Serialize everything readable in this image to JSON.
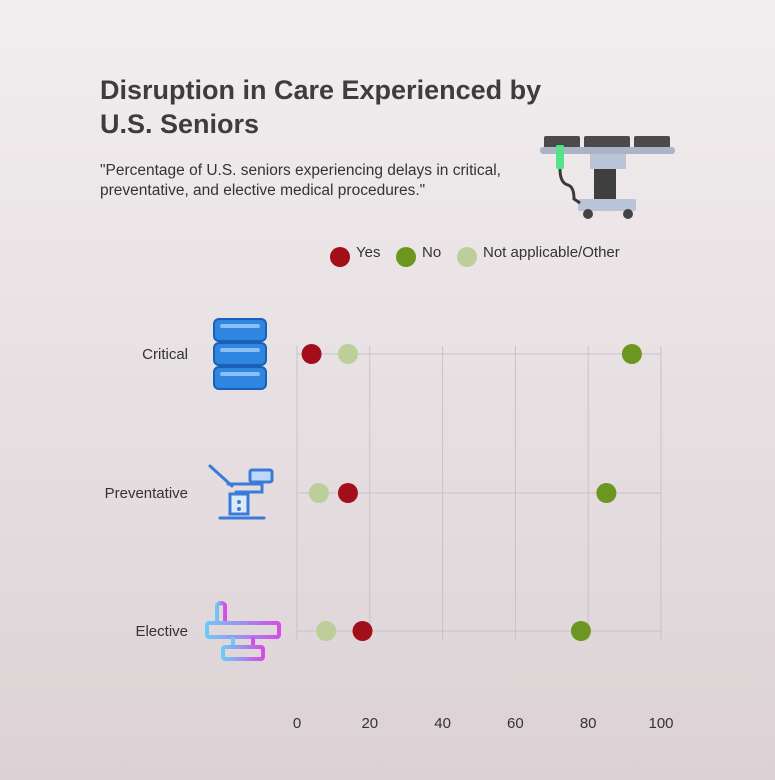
{
  "chart_data": {
    "type": "scatter",
    "title": "Disruption in Care Experienced by U.S. Seniors",
    "subtitle": "\"Percentage of U.S. seniors experiencing delays in critical, preventative, and elective medical procedures.\"",
    "categories": [
      "Critical",
      "Preventative",
      "Elective"
    ],
    "series": [
      {
        "name": "Yes",
        "color": "#a20f1b",
        "values": [
          4,
          14,
          18
        ]
      },
      {
        "name": "No",
        "color": "#6b961f",
        "values": [
          92,
          85,
          78
        ]
      },
      {
        "name": "Not applicable/Other",
        "color": "#bccf9a",
        "values": [
          14,
          6,
          8
        ]
      }
    ],
    "xlim": [
      0,
      100
    ],
    "xticks": [
      0,
      20,
      40,
      60,
      80,
      100
    ],
    "grid": true,
    "legend_position": "top"
  },
  "icons": {
    "header": "operating-table-icon",
    "critical": "spine-icon",
    "preventative": "medical-chair-icon",
    "elective": "surgical-table-icon"
  }
}
